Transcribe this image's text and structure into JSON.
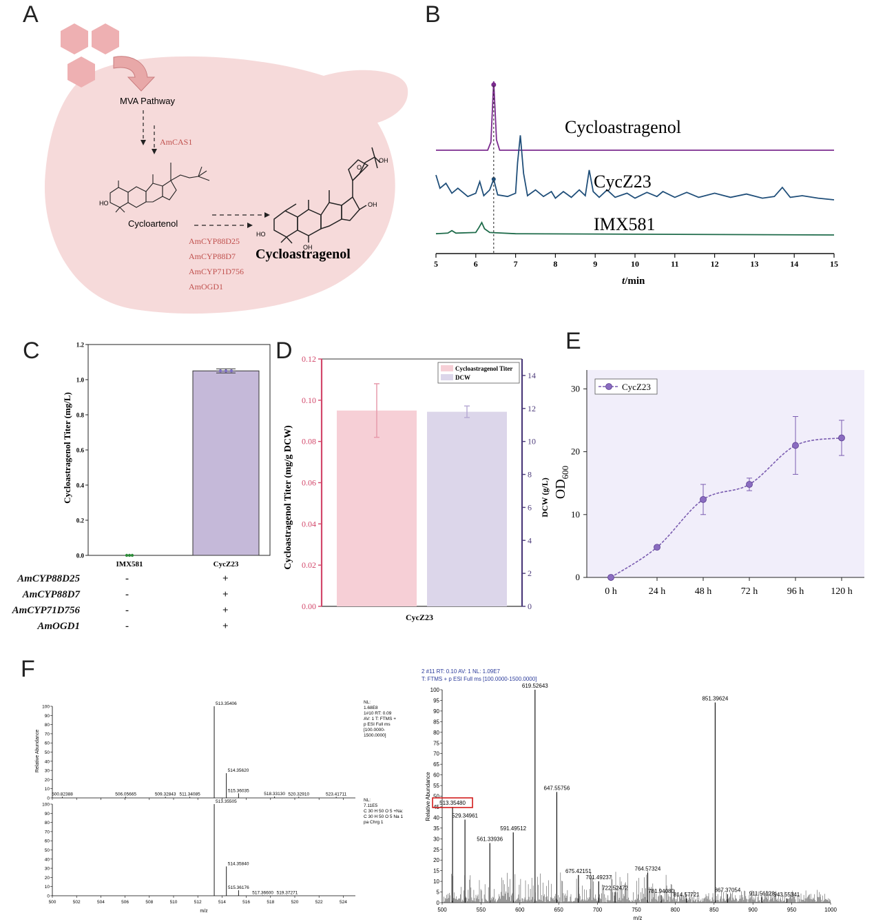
{
  "panel_labels": [
    "A",
    "B",
    "C",
    "D",
    "E",
    "F"
  ],
  "panel_a": {
    "mva": "MVA Pathway",
    "cas": "AmCAS1",
    "cycloartenol": "Cycloartenol",
    "product": "Cycloastragenol",
    "enzymes": [
      "AmCYP88D25",
      "AmCYP88D7",
      "AmCYP71D756",
      "AmOGD1"
    ],
    "oh_labels": [
      "HO",
      "HO",
      "OH",
      "OH",
      "OH"
    ],
    "colors": {
      "cell": "#f6dada",
      "hexagon": "#eeb0b2",
      "arrow": "#e8a8a8",
      "enzyme_text": "#c0504d"
    }
  },
  "chart_b": {
    "type": "line",
    "x_ticks": [
      5,
      6,
      7,
      8,
      9,
      10,
      11,
      12,
      13,
      14,
      15
    ],
    "x_range": [
      5,
      15
    ],
    "xlabel_italic": "t",
    "xlabel_rest": "/min",
    "marker_rt": 6.45,
    "series": [
      {
        "name": "Cycloastragenol",
        "color": "#7b2a8e",
        "x": [
          5.0,
          6.3,
          6.38,
          6.45,
          6.52,
          6.6,
          7.5,
          15.0
        ],
        "y": [
          0.0,
          0.0,
          0.12,
          1.0,
          0.15,
          0.0,
          0.0,
          0.0
        ]
      },
      {
        "name": "CycZ23",
        "color": "#1f4e79",
        "x": [
          5.0,
          5.1,
          5.25,
          5.4,
          5.55,
          5.8,
          6.0,
          6.1,
          6.2,
          6.35,
          6.45,
          6.55,
          6.8,
          7.0,
          7.05,
          7.12,
          7.2,
          7.3,
          7.5,
          7.7,
          7.9,
          8.0,
          8.2,
          8.4,
          8.6,
          8.75,
          8.85,
          8.95,
          9.1,
          9.3,
          9.5,
          9.8,
          10.0,
          10.3,
          10.55,
          10.7,
          11.0,
          11.3,
          11.6,
          12.0,
          12.4,
          12.8,
          13.2,
          13.5,
          13.7,
          13.9,
          14.2,
          14.6,
          15.0
        ],
        "y": [
          0.3,
          0.14,
          0.2,
          0.08,
          0.14,
          0.04,
          0.08,
          0.22,
          0.05,
          0.12,
          0.25,
          0.06,
          0.04,
          0.08,
          0.45,
          0.78,
          0.32,
          0.05,
          0.12,
          0.04,
          0.1,
          0.02,
          0.1,
          0.03,
          0.12,
          0.05,
          0.36,
          0.1,
          0.03,
          0.12,
          0.03,
          0.08,
          0.02,
          0.09,
          0.04,
          0.1,
          0.03,
          0.09,
          0.03,
          0.08,
          0.03,
          0.07,
          0.02,
          0.04,
          0.15,
          0.03,
          0.05,
          0.02,
          0.0
        ]
      },
      {
        "name": "IMX581",
        "color": "#1e6b4a",
        "x": [
          5.0,
          5.3,
          5.4,
          5.5,
          6.0,
          6.08,
          6.15,
          6.22,
          6.35,
          7.0,
          15.0
        ],
        "y": [
          0.02,
          0.03,
          0.07,
          0.03,
          0.04,
          0.12,
          0.2,
          0.1,
          0.04,
          0.02,
          0.0
        ]
      }
    ]
  },
  "chart_c": {
    "type": "bar",
    "ylabel": "Cycloastragenol Titer (mg/L)",
    "y_ticks": [
      "0.0",
      "0.2",
      "0.4",
      "0.6",
      "0.8",
      "1.0",
      "1.2"
    ],
    "ylim": [
      0,
      1.2
    ],
    "categories": [
      "IMX581",
      "CycZ23"
    ],
    "values": [
      0.0,
      1.05
    ],
    "errors": [
      0.0,
      0.012
    ],
    "bar_color": "#c5b9d9",
    "genes": [
      {
        "name": "AmCYP88D25",
        "imx": "-",
        "cyc": "+"
      },
      {
        "name": "AmCYP88D7",
        "imx": "-",
        "cyc": "+"
      },
      {
        "name": "AmCYP71D756",
        "imx": "-",
        "cyc": "+"
      },
      {
        "name": "AmOGD1",
        "imx": "-",
        "cyc": "+"
      }
    ]
  },
  "chart_d": {
    "type": "bar",
    "category": "CycZ23",
    "left_ylabel": "Cycloastragenol Titer (mg/g DCW)",
    "right_ylabel": "DCW (g/L)",
    "left_ticks": [
      "0.00",
      "0.02",
      "0.04",
      "0.06",
      "0.08",
      "0.10",
      "0.12"
    ],
    "right_ticks": [
      "0",
      "2",
      "4",
      "6",
      "8",
      "10",
      "12",
      "14"
    ],
    "left_ylim": [
      0,
      0.12
    ],
    "right_ylim": [
      0,
      15
    ],
    "series": [
      {
        "name": "Cycloastragenol Titer",
        "axis": "left",
        "value": 0.095,
        "error": 0.013,
        "color": "#f6cfd6"
      },
      {
        "name": "DCW",
        "axis": "right",
        "value": 11.8,
        "error": 0.35,
        "color": "#dcd6ea"
      }
    ],
    "axis_colors": {
      "left": "#d2476a",
      "right": "#4b3a7a"
    }
  },
  "chart_e": {
    "type": "line",
    "legend": "CycZ23",
    "ylabel_main": "OD",
    "ylabel_sub": "600",
    "x_ticks": [
      "0 h",
      "24 h",
      "48 h",
      "72 h",
      "96 h",
      "120 h"
    ],
    "y_ticks": [
      "0",
      "10",
      "20",
      "30"
    ],
    "ylim": [
      0,
      33
    ],
    "values": [
      0,
      4.8,
      12.4,
      14.8,
      21.0,
      22.2
    ],
    "errors": [
      0,
      0,
      2.4,
      1.0,
      4.6,
      2.8
    ],
    "color": "#7a5cb0",
    "bg": "#f1eefa"
  },
  "chart_f1": {
    "type": "line",
    "xlabel": "m/z",
    "ylabel": "Relative Abundance",
    "x_ticks": [
      "500",
      "502",
      "504",
      "506",
      "508",
      "510",
      "512",
      "514",
      "516",
      "518",
      "520",
      "522",
      "524"
    ],
    "y_ticks": [
      "0",
      "10",
      "20",
      "30",
      "40",
      "50",
      "60",
      "70",
      "80",
      "90",
      "100"
    ],
    "xlim": [
      500,
      525
    ],
    "top": {
      "info": [
        "NL:",
        "1.68E8",
        "1#10  RT: 0.09",
        "AV: 1 T: FTMS +",
        "p ESI Full ms",
        "[100.0000-",
        "1500.0000]"
      ],
      "peaks": [
        {
          "mz": 500.82388,
          "rel": 1.2,
          "label": "500.82388"
        },
        {
          "mz": 506.05665,
          "rel": 1.2,
          "label": "506.05665"
        },
        {
          "mz": 509.32843,
          "rel": 1.2,
          "label": "509.32843"
        },
        {
          "mz": 511.34085,
          "rel": 1.2,
          "label": "511.34085"
        },
        {
          "mz": 513.35406,
          "rel": 100,
          "label": "513.35406"
        },
        {
          "mz": 514.3562,
          "rel": 27,
          "label": "514.35620"
        },
        {
          "mz": 515.36035,
          "rel": 5,
          "label": "515.36035"
        },
        {
          "mz": 518.3313,
          "rel": 1.5,
          "label": "518.33130"
        },
        {
          "mz": 520.3291,
          "rel": 1.2,
          "label": "520.32910"
        },
        {
          "mz": 523.41711,
          "rel": 1.2,
          "label": "523.41711"
        }
      ]
    },
    "bottom": {
      "info": [
        "NL:",
        "7.11E5",
        "C 30 H 50 O 5 +Na:",
        "C 30 H 50 O 5 Na 1",
        "pa Chrg 1"
      ],
      "peaks": [
        {
          "mz": 513.35505,
          "rel": 100,
          "label": "513.35505"
        },
        {
          "mz": 514.3584,
          "rel": 32,
          "label": "514.35840"
        },
        {
          "mz": 515.36176,
          "rel": 6,
          "label": "515.36176"
        },
        {
          "mz": 517.366,
          "rel": 0.5,
          "label": "517.36600"
        },
        {
          "mz": 519.37271,
          "rel": 0.5,
          "label": "519.37271"
        }
      ]
    }
  },
  "chart_f2": {
    "type": "line",
    "header": [
      "2 #11   RT: 0.10   AV: 1   NL: 1.09E7",
      "T: FTMS + p ESI Full ms [100.0000-1500.0000]"
    ],
    "xlabel": "m/z",
    "ylabel": "Relative Abundance",
    "x_ticks": [
      "500",
      "550",
      "600",
      "650",
      "700",
      "750",
      "800",
      "850",
      "900",
      "950",
      "1000"
    ],
    "y_ticks": [
      "0",
      "5",
      "10",
      "15",
      "20",
      "25",
      "30",
      "35",
      "40",
      "45",
      "50",
      "55",
      "60",
      "65",
      "70",
      "75",
      "80",
      "85",
      "90",
      "95",
      "100"
    ],
    "xlim": [
      500,
      1000
    ],
    "highlight": "513.35480",
    "peaks": [
      {
        "mz": 513.3548,
        "rel": 45,
        "label": "513.35480"
      },
      {
        "mz": 529.34961,
        "rel": 39,
        "label": "529.34961"
      },
      {
        "mz": 561.33936,
        "rel": 28,
        "label": "561.33936"
      },
      {
        "mz": 591.49512,
        "rel": 33,
        "label": "591.49512"
      },
      {
        "mz": 619.52643,
        "rel": 100,
        "label": "619.52643"
      },
      {
        "mz": 647.55756,
        "rel": 52,
        "label": "647.55756"
      },
      {
        "mz": 675.42151,
        "rel": 13,
        "label": "675.42151"
      },
      {
        "mz": 701.49237,
        "rel": 10,
        "label": "701.49237"
      },
      {
        "mz": 722.52472,
        "rel": 5,
        "label": "722.52472"
      },
      {
        "mz": 764.57324,
        "rel": 14,
        "label": "764.57324"
      },
      {
        "mz": 781.9408,
        "rel": 3.5,
        "label": "781.94080"
      },
      {
        "mz": 814.57721,
        "rel": 2,
        "label": "814.57721"
      },
      {
        "mz": 851.39624,
        "rel": 94,
        "label": "851.39624"
      },
      {
        "mz": 867.37054,
        "rel": 4,
        "label": "867.37054"
      },
      {
        "mz": 911.56128,
        "rel": 2.5,
        "label": "911.56128"
      },
      {
        "mz": 943.55341,
        "rel": 2,
        "label": "943.55341"
      }
    ]
  }
}
